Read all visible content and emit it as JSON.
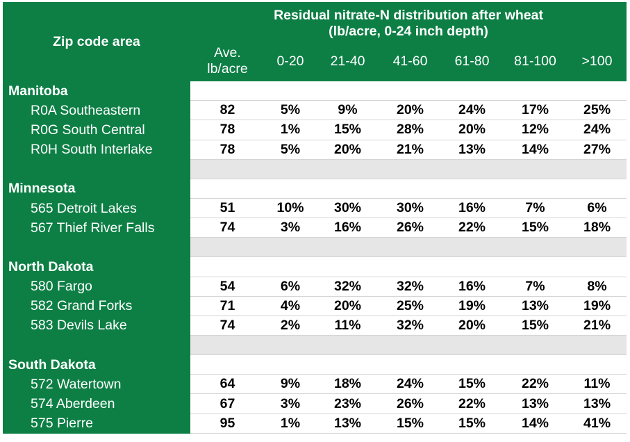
{
  "header": {
    "zip_label": "Zip code area",
    "title_line1": "Residual nitrate-N distribution after wheat",
    "title_line2": "(lb/acre, 0-24 inch depth)",
    "columns": [
      "Ave. lb/acre",
      "0-20",
      "21-40",
      "41-60",
      "61-80",
      "81-100",
      ">100"
    ],
    "ave_line1": "Ave.",
    "ave_line2": "lb/acre"
  },
  "groups": [
    {
      "region": "Manitoba",
      "rows": [
        {
          "area": "R0A Southeastern",
          "values": [
            "82",
            "5%",
            "9%",
            "20%",
            "24%",
            "17%",
            "25%"
          ]
        },
        {
          "area": "R0G South Central",
          "values": [
            "78",
            "1%",
            "15%",
            "28%",
            "20%",
            "12%",
            "24%"
          ]
        },
        {
          "area": "R0H South Interlake",
          "values": [
            "78",
            "5%",
            "20%",
            "21%",
            "13%",
            "14%",
            "27%"
          ]
        }
      ]
    },
    {
      "region": "Minnesota",
      "rows": [
        {
          "area": "565 Detroit Lakes",
          "values": [
            "51",
            "10%",
            "30%",
            "30%",
            "16%",
            "7%",
            "6%"
          ]
        },
        {
          "area": "567 Thief River Falls",
          "values": [
            "74",
            "3%",
            "16%",
            "26%",
            "22%",
            "15%",
            "18%"
          ]
        }
      ]
    },
    {
      "region": "North Dakota",
      "rows": [
        {
          "area": "580 Fargo",
          "values": [
            "54",
            "6%",
            "32%",
            "32%",
            "16%",
            "7%",
            "8%"
          ]
        },
        {
          "area": "582 Grand Forks",
          "values": [
            "71",
            "4%",
            "20%",
            "25%",
            "19%",
            "13%",
            "19%"
          ]
        },
        {
          "area": "583 Devils Lake",
          "values": [
            "74",
            "2%",
            "11%",
            "32%",
            "20%",
            "15%",
            "21%"
          ]
        }
      ]
    },
    {
      "region": "South Dakota",
      "rows": [
        {
          "area": "572 Watertown",
          "values": [
            "64",
            "9%",
            "18%",
            "24%",
            "15%",
            "22%",
            "11%"
          ]
        },
        {
          "area": "574 Aberdeen",
          "values": [
            "67",
            "3%",
            "23%",
            "26%",
            "22%",
            "13%",
            "13%"
          ]
        },
        {
          "area": "575 Pierre",
          "values": [
            "95",
            "1%",
            "13%",
            "15%",
            "15%",
            "14%",
            "41%"
          ]
        }
      ]
    }
  ]
}
